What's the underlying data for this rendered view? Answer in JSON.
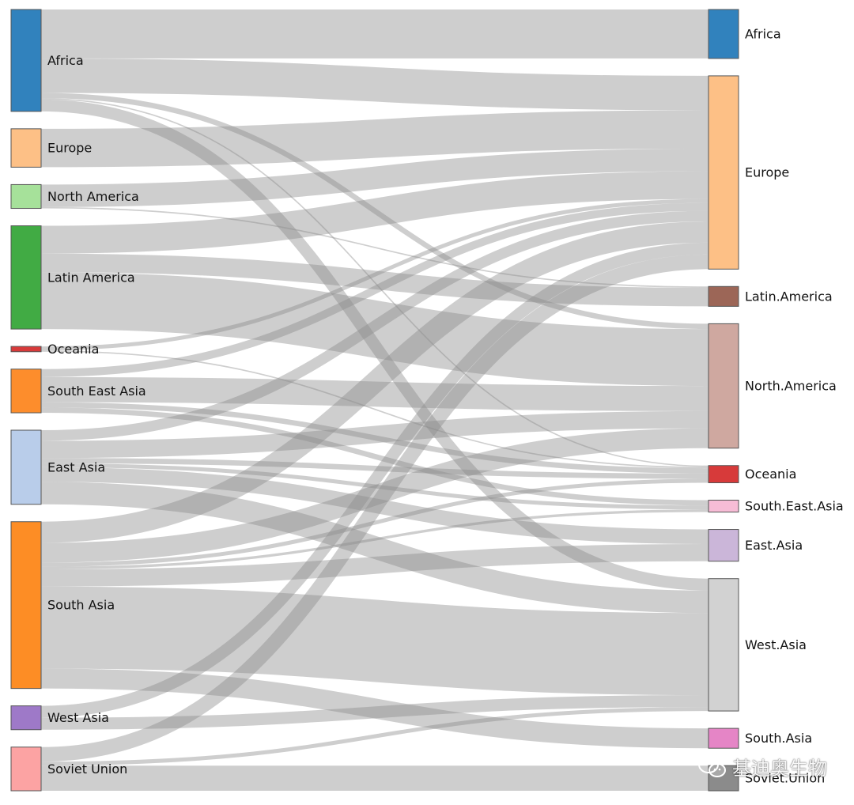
{
  "chart_data": {
    "type": "sankey",
    "title": "",
    "unit": "",
    "sources": [
      {
        "name": "Africa",
        "color": "#3182bd"
      },
      {
        "name": "Europe",
        "color": "#fdc086"
      },
      {
        "name": "North America",
        "color": "#a6e19a"
      },
      {
        "name": "Latin America",
        "color": "#41ab44"
      },
      {
        "name": "Oceania",
        "color": "#d73a3a"
      },
      {
        "name": "South East Asia",
        "color": "#fd8d2c"
      },
      {
        "name": "East Asia",
        "color": "#b9cdea"
      },
      {
        "name": "South Asia",
        "color": "#fd8d25"
      },
      {
        "name": "West Asia",
        "color": "#9e79c8"
      },
      {
        "name": "Soviet Union",
        "color": "#fca3a3"
      }
    ],
    "targets": [
      {
        "name": "Africa",
        "color": "#3182bd"
      },
      {
        "name": "Europe",
        "color": "#fdc086"
      },
      {
        "name": "Latin.America",
        "color": "#9c6657"
      },
      {
        "name": "North.America",
        "color": "#cfa8a0"
      },
      {
        "name": "Oceania",
        "color": "#d73a3a"
      },
      {
        "name": "South.East.Asia",
        "color": "#f7bcd6"
      },
      {
        "name": "East.Asia",
        "color": "#cbb6d9"
      },
      {
        "name": "West.Asia",
        "color": "#d2d2d2"
      },
      {
        "name": "South.Asia",
        "color": "#e585c6"
      },
      {
        "name": "Soviet.Union",
        "color": "#8b8b8b"
      }
    ],
    "flows": [
      {
        "source": "Africa",
        "target": "Africa",
        "value": 3.7
      },
      {
        "source": "Africa",
        "target": "Europe",
        "value": 2.6
      },
      {
        "source": "Africa",
        "target": "North.America",
        "value": 0.4
      },
      {
        "source": "Africa",
        "target": "West.Asia",
        "value": 0.9
      },
      {
        "source": "Africa",
        "target": "Oceania",
        "value": 0.1
      },
      {
        "source": "Europe",
        "target": "Europe",
        "value": 2.9
      },
      {
        "source": "North America",
        "target": "Europe",
        "value": 1.7
      },
      {
        "source": "North America",
        "target": "Latin.America",
        "value": 0.1
      },
      {
        "source": "Latin America",
        "target": "Europe",
        "value": 2.1
      },
      {
        "source": "Latin America",
        "target": "Latin.America",
        "value": 1.4
      },
      {
        "source": "Latin America",
        "target": "North.America",
        "value": 4.3
      },
      {
        "source": "Oceania",
        "target": "Europe",
        "value": 0.3
      },
      {
        "source": "Oceania",
        "target": "Oceania",
        "value": 0.1
      },
      {
        "source": "South East Asia",
        "target": "North.America",
        "value": 1.9
      },
      {
        "source": "South East Asia",
        "target": "Europe",
        "value": 0.6
      },
      {
        "source": "South East Asia",
        "target": "Oceania",
        "value": 0.4
      },
      {
        "source": "South East Asia",
        "target": "South.East.Asia",
        "value": 0.4
      },
      {
        "source": "East Asia",
        "target": "Europe",
        "value": 0.8
      },
      {
        "source": "East Asia",
        "target": "North.America",
        "value": 1.3
      },
      {
        "source": "East Asia",
        "target": "Oceania",
        "value": 0.4
      },
      {
        "source": "East Asia",
        "target": "South.East.Asia",
        "value": 0.3
      },
      {
        "source": "East Asia",
        "target": "East.Asia",
        "value": 1.1
      },
      {
        "source": "East Asia",
        "target": "West.Asia",
        "value": 1.7
      },
      {
        "source": "South Asia",
        "target": "Europe",
        "value": 1.6
      },
      {
        "source": "South Asia",
        "target": "North.America",
        "value": 1.5
      },
      {
        "source": "South Asia",
        "target": "Oceania",
        "value": 0.3
      },
      {
        "source": "South Asia",
        "target": "East.Asia",
        "value": 1.3
      },
      {
        "source": "South Asia",
        "target": "South.East.Asia",
        "value": 0.2
      },
      {
        "source": "South Asia",
        "target": "West.Asia",
        "value": 6.2
      },
      {
        "source": "South Asia",
        "target": "South.Asia",
        "value": 1.5
      },
      {
        "source": "West Asia",
        "target": "Europe",
        "value": 0.9
      },
      {
        "source": "West Asia",
        "target": "West.Asia",
        "value": 0.9
      },
      {
        "source": "Soviet Union",
        "target": "Europe",
        "value": 1.1
      },
      {
        "source": "Soviet Union",
        "target": "West.Asia",
        "value": 0.3
      },
      {
        "source": "Soviet Union",
        "target": "Soviet.Union",
        "value": 1.9
      }
    ]
  },
  "watermark": {
    "text": "基迪奥生物",
    "icon": "wechat-icon"
  }
}
